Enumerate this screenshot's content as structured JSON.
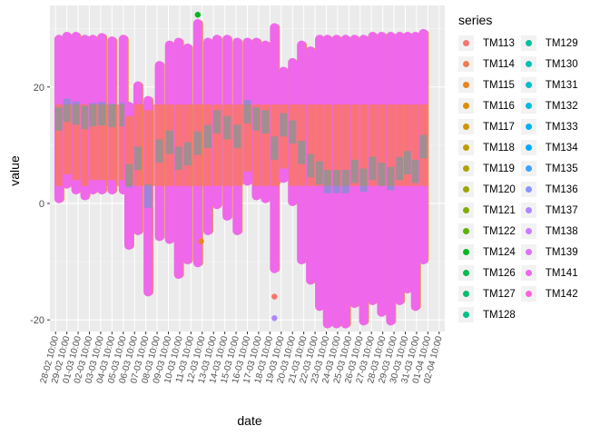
{
  "chart_data": {
    "type": "scatter",
    "xlabel": "date",
    "ylabel": "value",
    "legend_title": "series",
    "legend_position": "right",
    "grid": true,
    "background": "#ebebeb",
    "ylim": [
      -22,
      34
    ],
    "y_ticks": [
      -20,
      0,
      20
    ],
    "x_tick_labels": [
      "28-02 10:00",
      "29-02 10:00",
      "01-03 10:00",
      "02-03 10:00",
      "03-03 10:00",
      "04-03 10:00",
      "05-03 10:00",
      "06-03 10:00",
      "07-03 10:00",
      "08-03 10:00",
      "09-03 10:00",
      "10-03 10:00",
      "11-03 10:00",
      "12-03 10:00",
      "13-03 10:00",
      "14-03 10:00",
      "15-03 10:00",
      "16-03 10:00",
      "17-03 10:00",
      "18-03 10:00",
      "19-03 10:00",
      "20-03 10:00",
      "21-03 10:00",
      "22-03 10:00",
      "23-03 10:00",
      "24-03 10:00",
      "25-03 10:00",
      "26-03 10:00",
      "27-03 10:00",
      "28-03 10:00",
      "29-03 10:00",
      "30-03 10:00",
      "31-03 10:00",
      "01-04 10:00",
      "02-04 10:00"
    ],
    "series": [
      {
        "name": "TM113",
        "color": "#F8766D"
      },
      {
        "name": "TM114",
        "color": "#F17D50"
      },
      {
        "name": "TM115",
        "color": "#E7851E"
      },
      {
        "name": "TM116",
        "color": "#DC8D00"
      },
      {
        "name": "TM117",
        "color": "#CF9400"
      },
      {
        "name": "TM118",
        "color": "#BF9C00"
      },
      {
        "name": "TM119",
        "color": "#AEA200"
      },
      {
        "name": "TM120",
        "color": "#99A800"
      },
      {
        "name": "TM121",
        "color": "#7FAE00"
      },
      {
        "name": "TM122",
        "color": "#5BB300"
      },
      {
        "name": "TM124",
        "color": "#00B81F"
      },
      {
        "name": "TM126",
        "color": "#00BB4E"
      },
      {
        "name": "TM127",
        "color": "#00BE6C"
      },
      {
        "name": "TM128",
        "color": "#00C087"
      },
      {
        "name": "TM129",
        "color": "#00C0A0"
      },
      {
        "name": "TM130",
        "color": "#00BFB7"
      },
      {
        "name": "TM131",
        "color": "#00BDCC"
      },
      {
        "name": "TM132",
        "color": "#00B9E0"
      },
      {
        "name": "TM133",
        "color": "#00B3F1"
      },
      {
        "name": "TM134",
        "color": "#00ABFD"
      },
      {
        "name": "TM135",
        "color": "#3DA1FF"
      },
      {
        "name": "TM136",
        "color": "#8B93FF"
      },
      {
        "name": "TM137",
        "color": "#B086FF"
      },
      {
        "name": "TM138",
        "color": "#CB7BFF"
      },
      {
        "name": "TM139",
        "color": "#E070F4"
      },
      {
        "name": "TM141",
        "color": "#EF67EB"
      },
      {
        "name": "TM142",
        "color": "#F863DF"
      }
    ],
    "vertical_bands": [
      {
        "x": 0.3,
        "low": 0.5,
        "high": 28.5
      },
      {
        "x": 1.0,
        "low": 3,
        "high": 29
      },
      {
        "x": 1.8,
        "low": 2,
        "high": 29
      },
      {
        "x": 2.6,
        "low": 1,
        "high": 28.5
      },
      {
        "x": 3.3,
        "low": 2,
        "high": 28.5
      },
      {
        "x": 4.1,
        "low": 2,
        "high": 28.8
      },
      {
        "x": 5.0,
        "low": 2,
        "high": 28.2
      },
      {
        "x": 6.0,
        "low": 2,
        "high": 28.5
      },
      {
        "x": 6.5,
        "low": -7.5,
        "high": 17
      },
      {
        "x": 7.3,
        "low": -5,
        "high": 20.5
      },
      {
        "x": 8.2,
        "low": -15.5,
        "high": 18
      },
      {
        "x": 9.2,
        "low": -6,
        "high": 24
      },
      {
        "x": 10.1,
        "low": -6.5,
        "high": 27.5
      },
      {
        "x": 10.9,
        "low": -12.5,
        "high": 28
      },
      {
        "x": 11.7,
        "low": -10,
        "high": 27
      },
      {
        "x": 12.6,
        "low": -10.5,
        "high": 31.2
      },
      {
        "x": 13.5,
        "low": -5,
        "high": 28
      },
      {
        "x": 14.3,
        "low": -0.5,
        "high": 28.5
      },
      {
        "x": 15.2,
        "low": -2.5,
        "high": 28.5
      },
      {
        "x": 16.1,
        "low": -5,
        "high": 28
      },
      {
        "x": 17.0,
        "low": 3.5,
        "high": 28
      },
      {
        "x": 17.8,
        "low": 1,
        "high": 28
      },
      {
        "x": 18.6,
        "low": 0.5,
        "high": 27.5
      },
      {
        "x": 19.4,
        "low": -11.5,
        "high": 30.5
      },
      {
        "x": 20.2,
        "low": 4,
        "high": 23
      },
      {
        "x": 21.0,
        "low": 0,
        "high": 24.5
      },
      {
        "x": 21.8,
        "low": -10,
        "high": 27.5
      },
      {
        "x": 22.6,
        "low": -13.5,
        "high": 26.5
      },
      {
        "x": 23.4,
        "low": -18,
        "high": 28.5
      },
      {
        "x": 24.1,
        "low": -21,
        "high": 28.5
      },
      {
        "x": 24.9,
        "low": -21,
        "high": 28.5
      },
      {
        "x": 25.7,
        "low": -21,
        "high": 28.5
      },
      {
        "x": 26.5,
        "low": -17.5,
        "high": 28.5
      },
      {
        "x": 27.3,
        "low": -20.5,
        "high": 28.5
      },
      {
        "x": 28.1,
        "low": -17,
        "high": 29
      },
      {
        "x": 28.9,
        "low": -19,
        "high": 29
      },
      {
        "x": 29.7,
        "low": -20.5,
        "high": 29
      },
      {
        "x": 30.5,
        "low": -17,
        "high": 29
      },
      {
        "x": 31.2,
        "low": -15,
        "high": 29
      },
      {
        "x": 31.9,
        "low": -18,
        "high": 29
      },
      {
        "x": 32.6,
        "low": -10,
        "high": 29.5
      }
    ],
    "coral_band": {
      "low": 3,
      "high": 17
    },
    "outliers": [
      {
        "x": 12.6,
        "y": 32.4,
        "color": "#00B81F"
      },
      {
        "x": 19.4,
        "y": -19.7,
        "color": "#B086FF"
      },
      {
        "x": 19.4,
        "y": -16,
        "color": "#F8766D"
      },
      {
        "x": 12.9,
        "y": -6.5,
        "color": "#E7851E"
      }
    ]
  }
}
